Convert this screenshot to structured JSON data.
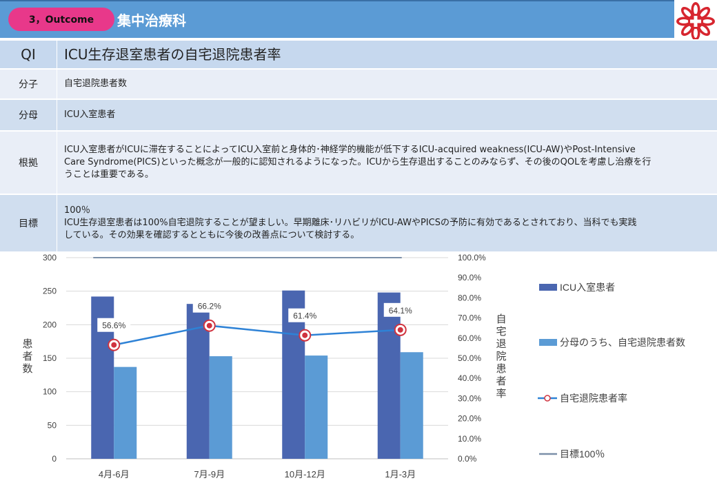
{
  "header": {
    "section_label": "3，Outcome",
    "department": "集中治療科"
  },
  "rows": [
    {
      "key": "QI",
      "value": "ICU生存退室患者の自宅退院患者率"
    },
    {
      "key": "分子",
      "value": "自宅退院患者数"
    },
    {
      "key": "分母",
      "value": "ICU入室患者"
    },
    {
      "key": "根拠",
      "value_lines": [
        "ICU入室患者がICUに滞在することによってICU入室前と身体的･神経学的機能が低下するICU-acquired weakness(ICU-AW)やPost-Intensive",
        "Care Syndrome(PICS)といった概念が一般的に認知されるようになった。ICUから生存退出することのみならず、その後のQOLを考慮し治療を行",
        "うことは重要である。"
      ]
    },
    {
      "key": "目標",
      "value_lines": [
        "100％",
        "ICU生存退室患者は100%自宅退院することが望ましい。早期離床･リハビリがICU-AWやPICSの予防に有効であるとされており、当科でも実践",
        "している。その効果を確認するとともに今後の改善点について検討する。"
      ]
    }
  ],
  "colors": {
    "series1": "#4a66b0",
    "series2": "#5b9bd5",
    "rate": "#2e82d6",
    "target": "#7b8fa8",
    "header": "#5b9bd5",
    "pill": "#e8388a"
  },
  "chart_data": {
    "type": "bar",
    "categories": [
      "4月-6月",
      "7月-9月",
      "10月-12月",
      "1月-3月"
    ],
    "series": [
      {
        "name": "ICU入室患者",
        "type": "bar",
        "axis": "left",
        "values": [
          242,
          231,
          251,
          248
        ]
      },
      {
        "name": "分母のうち、自宅退院患者数",
        "type": "bar",
        "axis": "left",
        "values": [
          137,
          153,
          154,
          159
        ]
      },
      {
        "name": "自宅退院患者率",
        "type": "line",
        "axis": "right",
        "values": [
          0.566,
          0.662,
          0.614,
          0.641
        ],
        "labels": [
          "56.6%",
          "66.2%",
          "61.4%",
          "64.1%"
        ]
      },
      {
        "name": "目標100％",
        "type": "line",
        "axis": "right",
        "values": [
          1.0,
          1.0,
          1.0,
          1.0
        ]
      }
    ],
    "ylabel": "患者数",
    "ylabel_right": "自宅退院患者率",
    "ylim": [
      0,
      300
    ],
    "yticks": [
      "0",
      "50",
      "100",
      "150",
      "200",
      "250",
      "300"
    ],
    "ylim_right": [
      0,
      1
    ],
    "yticks_right": [
      "0.0%",
      "10.0%",
      "20.0%",
      "30.0%",
      "40.0%",
      "50.0%",
      "60.0%",
      "70.0%",
      "80.0%",
      "90.0%",
      "100.0%"
    ],
    "legend_position": "right",
    "grid": true
  }
}
